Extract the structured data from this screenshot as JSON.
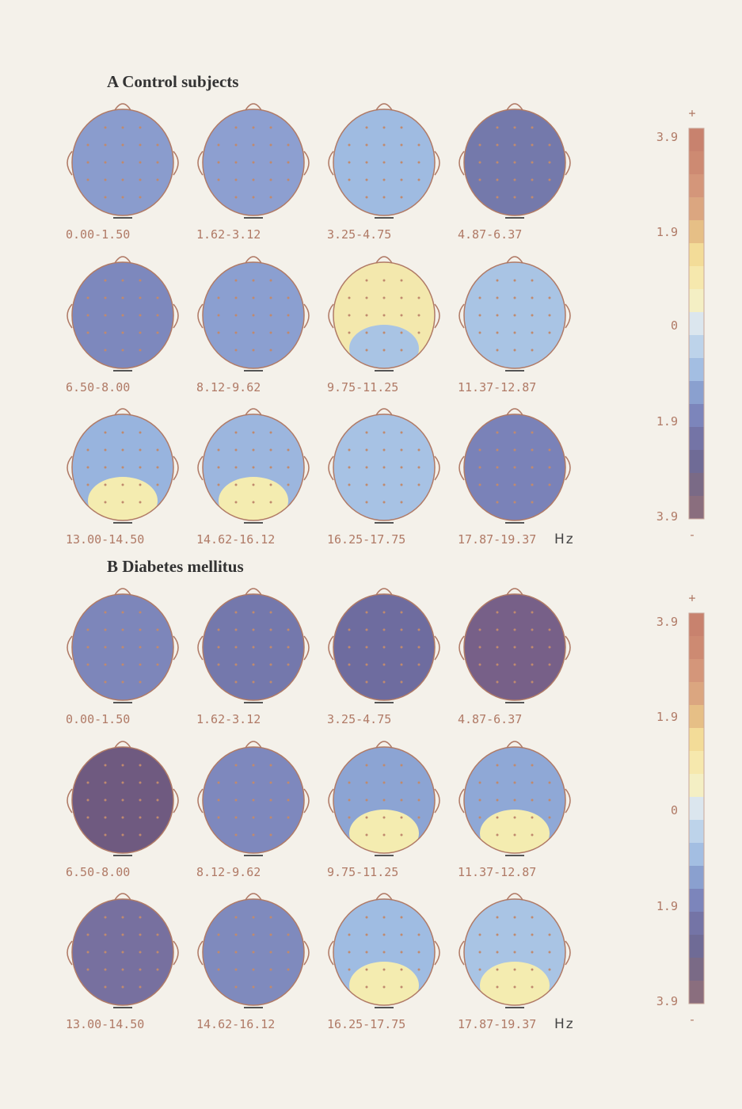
{
  "panels": [
    {
      "title": "A Control subjects",
      "unit": "Hz",
      "scale": [
        "+",
        "3.9",
        "1.9",
        "0",
        "1.9",
        "3.9",
        "-"
      ],
      "maps": [
        {
          "label": "0.00-1.50",
          "color": "#8a9ccd"
        },
        {
          "label": "1.62-3.12",
          "color": "#8d9fd0"
        },
        {
          "label": "3.25-4.75",
          "color": "#9fbbe1"
        },
        {
          "label": "4.87-6.37",
          "color": "#7479ab"
        },
        {
          "label": "6.50-8.00",
          "color": "#7d88bd"
        },
        {
          "label": "8.12-9.62",
          "color": "#8b9fd0"
        },
        {
          "label": "9.75-11.25",
          "color": "#f3e8ad",
          "accent": "#a9c4e4"
        },
        {
          "label": "11.37-12.87",
          "color": "#a9c4e4"
        },
        {
          "label": "13.00-14.50",
          "color": "#98b4de",
          "accent": "#f4ecb0"
        },
        {
          "label": "14.62-16.12",
          "color": "#9cb6de",
          "accent": "#f4ecb0"
        },
        {
          "label": "16.25-17.75",
          "color": "#a7c2e4"
        },
        {
          "label": "17.87-19.37",
          "color": "#7a82b8"
        }
      ]
    },
    {
      "title": "B Diabetes mellitus",
      "unit": "Hz",
      "scale": [
        "+",
        "3.9",
        "1.9",
        "0",
        "1.9",
        "3.9",
        "-"
      ],
      "maps": [
        {
          "label": "0.00-1.50",
          "color": "#7d86ba"
        },
        {
          "label": "1.62-3.12",
          "color": "#7478ac"
        },
        {
          "label": "3.25-4.75",
          "color": "#6e6c9f"
        },
        {
          "label": "4.87-6.37",
          "color": "#776088"
        },
        {
          "label": "6.50-8.00",
          "color": "#6f5a80"
        },
        {
          "label": "8.12-9.62",
          "color": "#7e88bd"
        },
        {
          "label": "9.75-11.25",
          "color": "#8ca4d3",
          "accent": "#f4ecb0"
        },
        {
          "label": "11.37-12.87",
          "color": "#8fa8d6",
          "accent": "#f4ecb0"
        },
        {
          "label": "13.00-14.50",
          "color": "#77709f"
        },
        {
          "label": "14.62-16.12",
          "color": "#7f8abd"
        },
        {
          "label": "16.25-17.75",
          "color": "#9fbce2",
          "accent": "#f4ecb0"
        },
        {
          "label": "17.87-19.37",
          "color": "#a9c4e4",
          "accent": "#f4ecb0"
        }
      ]
    }
  ]
}
